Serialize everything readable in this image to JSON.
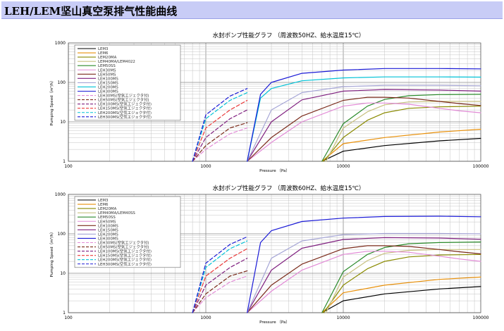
{
  "page": {
    "title": "LEH/LEM坚山真空泵排气性能曲线"
  },
  "chart_data": [
    {
      "type": "line",
      "title": "水封ポンプ性能グラフ （周波数50HZ、給水温度15℃）",
      "xlabel": "Pressure （Pa）",
      "ylabel": "Pumping Speed（m³/h）",
      "x_scale": "log",
      "y_scale": "log",
      "xlim": [
        100,
        100000
      ],
      "ylim": [
        1,
        1000
      ],
      "x_ticks": [
        "100",
        "1000",
        "10000",
        "100000"
      ],
      "y_ticks": [
        "1",
        "10",
        "100",
        "1000"
      ],
      "grid": true,
      "legend_position": "top-left",
      "series": [
        {
          "name": "LEM3",
          "color": "#000000",
          "dash": false,
          "x": [
            7000,
            10000,
            20000,
            50000,
            100000
          ],
          "y": [
            1,
            1.8,
            2.5,
            3.3,
            3.8
          ]
        },
        {
          "name": "LEM6",
          "color": "#e8900a",
          "dash": false,
          "x": [
            7000,
            10000,
            20000,
            50000,
            100000
          ],
          "y": [
            1,
            2.8,
            4,
            5.5,
            6.5
          ]
        },
        {
          "name": "LEM20MA",
          "color": "#8a8a00",
          "dash": false,
          "x": [
            7200,
            10000,
            15000,
            20000,
            30000,
            50000,
            100000
          ],
          "y": [
            1,
            4,
            11,
            17,
            22,
            24,
            25
          ]
        },
        {
          "name": "LEM40MA/LEM4022",
          "color": "#c8c080",
          "dash": false,
          "x": [
            7500,
            10000,
            15000,
            20000,
            30000,
            50000,
            100000
          ],
          "y": [
            1,
            7,
            18,
            27,
            32,
            33,
            33
          ]
        },
        {
          "name": "LEM50SS",
          "color": "#2a8a2a",
          "dash": false,
          "x": [
            7000,
            10000,
            15000,
            20000,
            30000,
            50000,
            100000
          ],
          "y": [
            1,
            9,
            25,
            37,
            46,
            49,
            50
          ]
        },
        {
          "name": "LEH30MS",
          "color": "#e28ad6",
          "dash": false,
          "x": [
            2000,
            3000,
            5000,
            10000,
            15000,
            20000,
            30000,
            50000,
            70000,
            100000
          ],
          "y": [
            1,
            3,
            10,
            25,
            30,
            30,
            28,
            22,
            19,
            17
          ]
        },
        {
          "name": "LEH50MS",
          "color": "#7a2a1a",
          "dash": false,
          "x": [
            2000,
            3000,
            5000,
            10000,
            15000,
            20000,
            30000,
            50000,
            70000,
            100000
          ],
          "y": [
            1,
            4,
            14,
            35,
            42,
            42,
            40,
            33,
            29,
            26
          ]
        },
        {
          "name": "LEH100MS",
          "color": "#7f1f7f",
          "dash": false,
          "x": [
            2000,
            3000,
            5000,
            10000,
            20000,
            50000,
            100000
          ],
          "y": [
            1,
            10,
            36,
            60,
            66,
            64,
            60
          ]
        },
        {
          "name": "LEH150MS",
          "color": "#a6a6d6",
          "dash": false,
          "x": [
            2000,
            3000,
            5000,
            10000,
            20000,
            50000,
            100000
          ],
          "y": [
            1,
            20,
            55,
            78,
            84,
            84,
            82
          ]
        },
        {
          "name": "LEH200MS",
          "color": "#00c2d6",
          "dash": false,
          "x": [
            2000,
            2500,
            3000,
            5000,
            10000,
            20000,
            50000,
            100000
          ],
          "y": [
            1,
            40,
            70,
            110,
            130,
            138,
            138,
            136
          ]
        },
        {
          "name": "LEH300MS",
          "color": "#1a1ad6",
          "dash": false,
          "x": [
            2000,
            2500,
            3000,
            5000,
            10000,
            20000,
            50000,
            100000
          ],
          "y": [
            1,
            50,
            100,
            170,
            205,
            225,
            225,
            220
          ]
        },
        {
          "name": "LEH30MS(空気エジェクタ付)",
          "color": "#e28ad6",
          "dash": true,
          "x": [
            800,
            1000,
            1500,
            2000
          ],
          "y": [
            1,
            2,
            5,
            7
          ]
        },
        {
          "name": "LEH50MS(空気エジェクタ付)",
          "color": "#7a2a1a",
          "dash": true,
          "x": [
            800,
            1000,
            1500,
            2000
          ],
          "y": [
            1,
            2.5,
            7,
            9.5
          ]
        },
        {
          "name": "LEH100MS(空気エジェクタ付)",
          "color": "#7f1f7f",
          "dash": true,
          "x": [
            800,
            1000,
            1500,
            2000
          ],
          "y": [
            1,
            4,
            12,
            20
          ]
        },
        {
          "name": "LEH150MS(空気エジェクタ付)",
          "color": "#ea3a3a",
          "dash": true,
          "x": [
            800,
            1000,
            1500,
            2000
          ],
          "y": [
            1,
            7,
            20,
            35
          ]
        },
        {
          "name": "LEH200MS(空気エジェクタ付)",
          "color": "#00c2d6",
          "dash": true,
          "x": [
            800,
            1000,
            1500,
            2000
          ],
          "y": [
            1,
            12,
            35,
            55
          ]
        },
        {
          "name": "LEH300MS(空気エジェクタ付)",
          "color": "#1a1ad6",
          "dash": true,
          "x": [
            800,
            1000,
            1500,
            2000
          ],
          "y": [
            1,
            15,
            45,
            70
          ]
        }
      ]
    },
    {
      "type": "line",
      "title": "水封ポンプ性能グラフ （周波数60HZ、給水温度15℃）",
      "xlabel": "Pressure （Pa）",
      "ylabel": "Pumping Speed（m³/h）",
      "x_scale": "log",
      "y_scale": "log",
      "xlim": [
        100,
        100000
      ],
      "ylim": [
        1,
        1000
      ],
      "x_ticks": [
        "100",
        "1000",
        "10000",
        "100000"
      ],
      "y_ticks": [
        "1",
        "10",
        "100",
        "1000"
      ],
      "grid": true,
      "legend_position": "top-left",
      "series": [
        {
          "name": "LEM3",
          "color": "#000000",
          "dash": false,
          "x": [
            7000,
            10000,
            20000,
            50000,
            100000
          ],
          "y": [
            1,
            2,
            3,
            4,
            4.6
          ]
        },
        {
          "name": "LEM6",
          "color": "#e8900a",
          "dash": false,
          "x": [
            7000,
            10000,
            20000,
            50000,
            100000
          ],
          "y": [
            1,
            3.2,
            5,
            7,
            8
          ]
        },
        {
          "name": "LEM20MA",
          "color": "#8a8a00",
          "dash": false,
          "x": [
            7200,
            10000,
            15000,
            20000,
            30000,
            50000,
            100000
          ],
          "y": [
            1,
            5,
            13,
            20,
            26,
            29,
            30
          ]
        },
        {
          "name": "LEM40MA/LEM40SS",
          "color": "#c8c080",
          "dash": false,
          "x": [
            7500,
            10000,
            15000,
            20000,
            30000,
            50000,
            100000
          ],
          "y": [
            1,
            8,
            21,
            32,
            38,
            40,
            40
          ]
        },
        {
          "name": "LEM50SS",
          "color": "#2a8a2a",
          "dash": false,
          "x": [
            7000,
            10000,
            15000,
            20000,
            30000,
            50000,
            100000
          ],
          "y": [
            1,
            11,
            30,
            45,
            56,
            60,
            62
          ]
        },
        {
          "name": "LEH50MS",
          "color": "#e28ad6",
          "dash": false,
          "x": [
            2000,
            3000,
            5000,
            10000,
            15000,
            20000,
            30000,
            50000,
            70000,
            100000
          ],
          "y": [
            1,
            3.5,
            12,
            30,
            36,
            36,
            34,
            27,
            23,
            20
          ]
        },
        {
          "name": "LEH100MS",
          "color": "#7a2a1a",
          "dash": false,
          "x": [
            2000,
            3000,
            5000,
            10000,
            15000,
            20000,
            30000,
            50000,
            70000,
            100000
          ],
          "y": [
            1,
            5,
            17,
            42,
            50,
            50,
            48,
            40,
            35,
            31
          ]
        },
        {
          "name": "LEH150MS",
          "color": "#7f1f7f",
          "dash": false,
          "x": [
            2000,
            3000,
            5000,
            10000,
            20000,
            50000,
            100000
          ],
          "y": [
            1,
            12,
            43,
            72,
            80,
            78,
            73
          ]
        },
        {
          "name": "LEH200MS",
          "color": "#a6a6d6",
          "dash": false,
          "x": [
            2000,
            3000,
            5000,
            10000,
            20000,
            50000,
            100000
          ],
          "y": [
            1,
            24,
            66,
            95,
            102,
            102,
            100
          ]
        },
        {
          "name": "LEH300MS",
          "color": "#1a1ad6",
          "dash": false,
          "x": [
            2000,
            2500,
            3000,
            5000,
            10000,
            20000,
            50000,
            100000
          ],
          "y": [
            1,
            60,
            120,
            205,
            250,
            275,
            280,
            270
          ]
        },
        {
          "name": "LEH30MS(空気エジェクタ付)",
          "color": "#e28ad6",
          "dash": true,
          "x": [
            800,
            1000,
            1500,
            2000
          ],
          "y": [
            1,
            2.4,
            6,
            8.5
          ]
        },
        {
          "name": "LEH50MS(空気エジェクタ付)",
          "color": "#7a2a1a",
          "dash": true,
          "x": [
            800,
            1000,
            1500,
            2000
          ],
          "y": [
            1,
            3,
            8.5,
            11.5
          ]
        },
        {
          "name": "LEH100MS(空気エジェクタ付)",
          "color": "#7f1f7f",
          "dash": true,
          "x": [
            800,
            1000,
            1500,
            2000
          ],
          "y": [
            1,
            5,
            14,
            24
          ]
        },
        {
          "name": "LEH150MS(空気エジェクタ付)",
          "color": "#ea3a3a",
          "dash": true,
          "x": [
            800,
            1000,
            1500,
            2000
          ],
          "y": [
            1,
            8.5,
            24,
            42
          ]
        },
        {
          "name": "LEH200MS(空気エジェクタ付)",
          "color": "#00c2d6",
          "dash": true,
          "x": [
            800,
            1000,
            1500,
            2000
          ],
          "y": [
            1,
            14,
            42,
            66
          ]
        },
        {
          "name": "LEH300MS(空気エジェクタ付)",
          "color": "#1a1ad6",
          "dash": true,
          "x": [
            800,
            1000,
            1500,
            2000
          ],
          "y": [
            1,
            18,
            54,
            84
          ]
        }
      ]
    }
  ]
}
